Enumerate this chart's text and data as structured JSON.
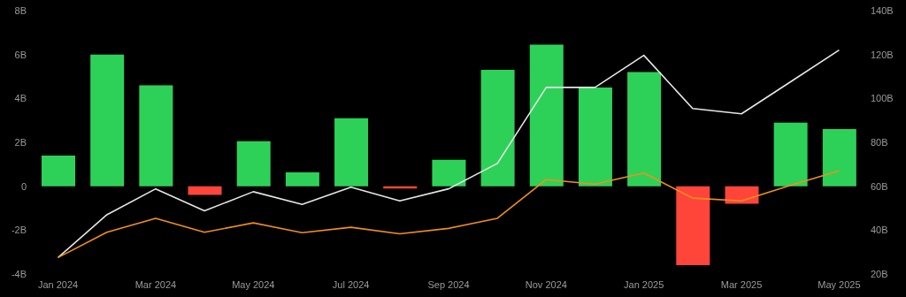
{
  "chart_data": {
    "type": "bar",
    "categories": [
      "Jan 2024",
      null,
      "Mar 2024",
      null,
      "May 2024",
      null,
      "Jul 2024",
      null,
      "Sep 2024",
      null,
      "Nov 2024",
      null,
      "Jan 2025",
      null,
      "Mar 2025",
      null,
      "May 2025"
    ],
    "series": [
      {
        "values": [
          1.4,
          6.0,
          4.6,
          -0.4,
          2.05,
          0.63,
          3.1,
          -0.1,
          1.2,
          5.3,
          6.45,
          4.5,
          5.2,
          -3.6,
          -0.8,
          2.9,
          2.6
        ],
        "colors": [
          "#2ed158",
          "#2ed158",
          "#2ed158",
          "#ff453a",
          "#2ed158",
          "#2ed158",
          "#2ed158",
          "#ff453a",
          "#2ed158",
          "#2ed158",
          "#2ed158",
          "#2ed158",
          "#2ed158",
          "#ff453a",
          "#ff453a",
          "#2ed158",
          "#2ed158"
        ]
      },
      {
        "type": "line",
        "axis": "y2",
        "color": "#e6e6e6",
        "values": [
          27.5,
          47,
          58.8,
          48.8,
          57.5,
          51.7,
          59.6,
          53.3,
          58.8,
          70.4,
          105,
          105,
          119.6,
          95.4,
          93,
          107.5,
          122
        ]
      },
      {
        "type": "line",
        "axis": "y2",
        "color": "#f0901a",
        "values": [
          27.5,
          39,
          45.4,
          39,
          43.3,
          38.8,
          41.3,
          38.3,
          40.8,
          45.4,
          63,
          61,
          66,
          54.6,
          53.3,
          60.4,
          67
        ]
      }
    ],
    "ylim": [
      -4,
      8
    ],
    "yticks": [
      {
        "value": -4,
        "label": "-4B"
      },
      {
        "value": -2,
        "label": "-2B"
      },
      {
        "value": 0,
        "label": "0"
      },
      {
        "value": 2,
        "label": "2B"
      },
      {
        "value": 4,
        "label": "4B"
      },
      {
        "value": 6,
        "label": "6B"
      },
      {
        "value": 8,
        "label": "8B"
      }
    ],
    "y2lim": [
      20,
      140
    ],
    "y2ticks": [
      {
        "value": 20,
        "label": "20B"
      },
      {
        "value": 40,
        "label": "40B"
      },
      {
        "value": 60,
        "label": "60B"
      },
      {
        "value": 80,
        "label": "80B"
      },
      {
        "value": 100,
        "label": "100B"
      },
      {
        "value": 120,
        "label": "120B"
      },
      {
        "value": 140,
        "label": "140B"
      }
    ],
    "grid": false,
    "marker": "none"
  }
}
